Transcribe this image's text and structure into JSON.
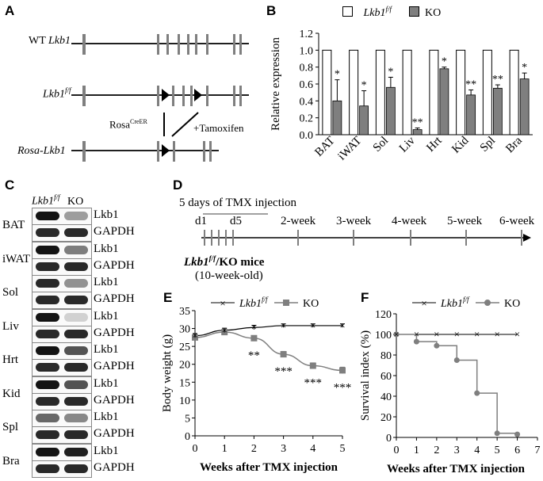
{
  "panels": {
    "A": "A",
    "B": "B",
    "C": "C",
    "D": "D",
    "E": "E",
    "F": "F"
  },
  "panelA": {
    "wt_label": "WT ",
    "wt_gene": "Lkb1",
    "ff_gene": "Lkb1",
    "ff_sup": "f/f",
    "rosa_label": "Rosa",
    "rosa_sup": "CreER",
    "tamoxifen": "+Tamoxifen",
    "rosa_lkb1": "Rosa-Lkb1"
  },
  "legend": {
    "ff_gene": "Lkb1",
    "ff_sup": "f/f",
    "ko": "KO"
  },
  "chart_data": [
    {
      "type": "bar",
      "panel": "B",
      "categories": [
        "BAT",
        "iWAT",
        "Sol",
        "Liv",
        "Hrt",
        "Kid",
        "Spl",
        "Bra"
      ],
      "ylabel": "Relative expression",
      "ylim": [
        0,
        1.2
      ],
      "yticks": [
        "0.0",
        "0.2",
        "0.4",
        "0.6",
        "0.8",
        "1.0",
        "1.2"
      ],
      "series": [
        {
          "name": "Lkb1 f/f",
          "values": [
            1,
            1,
            1,
            1,
            1,
            1,
            1,
            1
          ],
          "color": "#ffffff"
        },
        {
          "name": "KO",
          "values": [
            0.4,
            0.34,
            0.56,
            0.06,
            0.78,
            0.47,
            0.55,
            0.66
          ],
          "errors": [
            0.25,
            0.18,
            0.12,
            0.02,
            0.02,
            0.06,
            0.04,
            0.07
          ],
          "color": "#7f7f7f"
        }
      ],
      "significance": [
        "*",
        "*",
        "*",
        "**",
        "*",
        "**",
        "**",
        "*"
      ]
    },
    {
      "type": "line",
      "panel": "E",
      "xlabel": "Weeks after TMX injection",
      "ylabel": "Body weight (g)",
      "x": [
        0,
        1,
        2,
        3,
        4,
        5
      ],
      "xticks": [
        "0",
        "1",
        "2",
        "3",
        "4",
        "5"
      ],
      "ylim": [
        0,
        35
      ],
      "yticks": [
        "0",
        "5",
        "10",
        "15",
        "20",
        "25",
        "30",
        "35"
      ],
      "series": [
        {
          "name": "Lkb1 f/f",
          "values": [
            28.0,
            29.5,
            30.3,
            30.8,
            30.8,
            30.8
          ],
          "errors": [
            0.6,
            0.6,
            0.6,
            0.5,
            0.5,
            0.5
          ]
        },
        {
          "name": "KO",
          "values": [
            27.5,
            29.0,
            27.3,
            22.8,
            19.6,
            18.3
          ],
          "errors": [
            0.6,
            0.6,
            0.6,
            0.8,
            0.8,
            0.9
          ]
        }
      ],
      "significance": [
        "",
        "",
        "**",
        "***",
        "***",
        "***"
      ]
    },
    {
      "type": "line",
      "panel": "F",
      "xlabel": "Weeks after TMX injection",
      "ylabel": "Survival index (%)",
      "x": [
        0,
        1,
        2,
        3,
        4,
        5,
        6
      ],
      "xticks": [
        "0",
        "1",
        "2",
        "3",
        "4",
        "5",
        "6",
        "7"
      ],
      "ylim": [
        0,
        120
      ],
      "xlim": [
        0,
        7
      ],
      "yticks": [
        "0",
        "20",
        "40",
        "60",
        "80",
        "100",
        "120"
      ],
      "series": [
        {
          "name": "Lkb1 f/f",
          "x": [
            0,
            1,
            2,
            3,
            4,
            5,
            6
          ],
          "values": [
            100,
            100,
            100,
            100,
            100,
            100,
            100
          ]
        },
        {
          "name": "KO",
          "x": [
            0,
            1,
            2,
            3,
            4,
            5,
            6
          ],
          "values": [
            100,
            93,
            89,
            75,
            43,
            4,
            3
          ]
        }
      ]
    }
  ],
  "panelC": {
    "header_gene": "Lkb1",
    "header_sup": "f/f",
    "header_ko": "KO",
    "tissues": [
      "BAT",
      "iWAT",
      "Sol",
      "Liv",
      "Hrt",
      "Kid",
      "Spl",
      "Bra"
    ],
    "bands": [
      "Lkb1",
      "GAPDH"
    ]
  },
  "panelD": {
    "title": "5 days of TMX injection",
    "d1": "d1",
    "d5": "d5",
    "weeks": [
      "2-week",
      "3-week",
      "4-week",
      "5-week",
      "6-week"
    ],
    "mice_gene": "Lkb1",
    "mice_sup": "f/f",
    "mice_rest": "/KO mice",
    "age": "(10-week-old)"
  }
}
